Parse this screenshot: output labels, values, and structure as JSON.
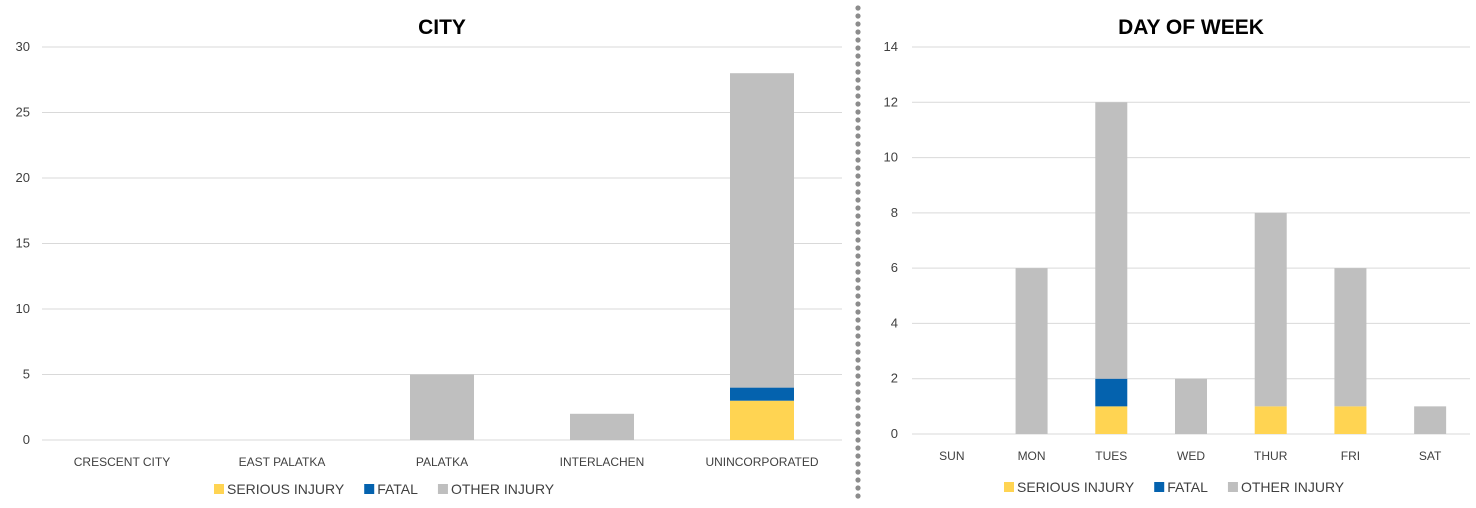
{
  "colors": {
    "serious": "#FFD452",
    "fatal": "#0462AE",
    "other": "#BFBFBF",
    "grid": "#D9D9D9",
    "divider": "#8C8C8C"
  },
  "chart_data": [
    {
      "type": "bar",
      "stacked": true,
      "title": "CITY",
      "xlabel": "",
      "ylabel": "",
      "ylim": [
        0,
        30
      ],
      "yticks": [
        0,
        5,
        10,
        15,
        20,
        25,
        30
      ],
      "grid": true,
      "legend_position": "bottom",
      "categories": [
        "CRESCENT CITY",
        "EAST PALATKA",
        "PALATKA",
        "INTERLACHEN",
        "UNINCORPORATED"
      ],
      "series": [
        {
          "name": "SERIOUS INJURY",
          "color": "#FFD452",
          "values": [
            0,
            0,
            0,
            0,
            3
          ]
        },
        {
          "name": "FATAL",
          "color": "#0462AE",
          "values": [
            0,
            0,
            0,
            0,
            1
          ]
        },
        {
          "name": "OTHER INJURY",
          "color": "#BFBFBF",
          "values": [
            0,
            0,
            5,
            2,
            24
          ]
        }
      ]
    },
    {
      "type": "bar",
      "stacked": true,
      "title": "DAY OF WEEK",
      "xlabel": "",
      "ylabel": "",
      "ylim": [
        0,
        14
      ],
      "yticks": [
        0,
        2,
        4,
        6,
        8,
        10,
        12,
        14
      ],
      "grid": true,
      "legend_position": "bottom",
      "categories": [
        "SUN",
        "MON",
        "TUES",
        "WED",
        "THUR",
        "FRI",
        "SAT"
      ],
      "series": [
        {
          "name": "SERIOUS INJURY",
          "color": "#FFD452",
          "values": [
            0,
            0,
            1,
            0,
            1,
            1,
            0
          ]
        },
        {
          "name": "FATAL",
          "color": "#0462AE",
          "values": [
            0,
            0,
            1,
            0,
            0,
            0,
            0
          ]
        },
        {
          "name": "OTHER INJURY",
          "color": "#BFBFBF",
          "values": [
            0,
            6,
            10,
            2,
            7,
            5,
            1
          ]
        }
      ]
    }
  ]
}
